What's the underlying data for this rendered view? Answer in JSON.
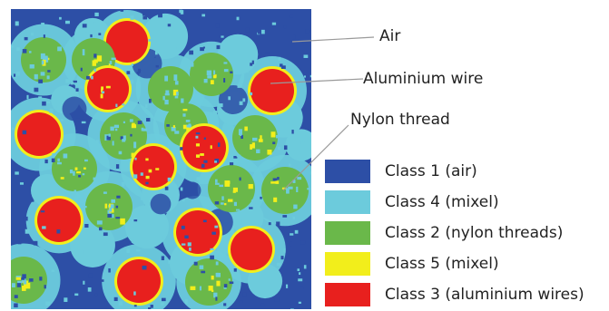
{
  "callouts": {
    "air": "Air",
    "aluminium_wire": "Aluminium wire",
    "nylon_thread": "Nylon thread"
  },
  "legend": [
    {
      "label": "Class 1 (air)",
      "color": "#2d4fa6"
    },
    {
      "label": "Class 4 (mixel)",
      "color": "#6ccbdc"
    },
    {
      "label": "Class 2 (nylon threads)",
      "color": "#6ab84a"
    },
    {
      "label": "Class 5 (mixel)",
      "color": "#f2ee1b"
    },
    {
      "label": "Class 3 (aluminium wires)",
      "color": "#e8201e"
    }
  ],
  "colors": {
    "air": "#2d4fa6",
    "mixel_cyan": "#6ccbdc",
    "nylon": "#6ab84a",
    "mixel_yellow": "#f2ee1b",
    "aluminium": "#e8201e",
    "leader_line": "#9a9a9a"
  }
}
